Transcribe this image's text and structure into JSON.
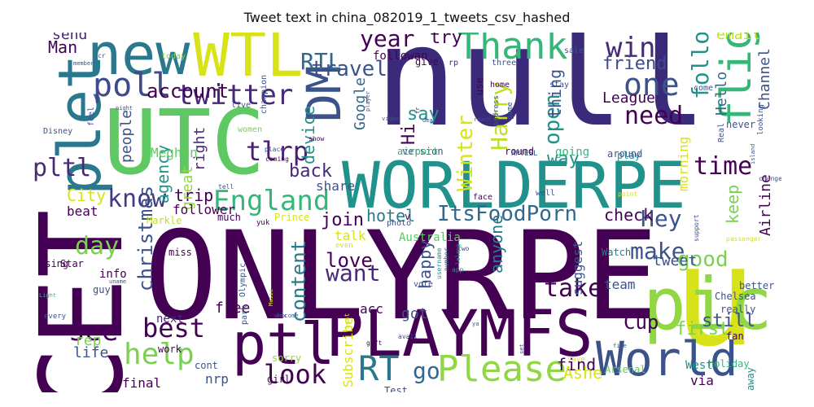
{
  "title": "Tweet text in china_082019_1_tweets_csv_hashed",
  "palette": {
    "dark_purple": "#440154",
    "indigo": "#3b2a7a",
    "blue": "#31688e",
    "teal": "#21918c",
    "green": "#35b779",
    "lime": "#90d743",
    "yellow": "#d8e219"
  },
  "words": [
    {
      "text": "null",
      "color": "#3b2a7a"
    },
    {
      "text": "ONLYRPE",
      "color": "#440154"
    },
    {
      "text": "UTC",
      "color": "#5ec962"
    },
    {
      "text": "CET",
      "color": "#440154"
    },
    {
      "text": "WORLDERPE",
      "color": "#21918c"
    },
    {
      "text": "PLAYMFS",
      "color": "#440154"
    },
    {
      "text": "u",
      "color": "#d8e219"
    },
    {
      "text": "pic",
      "color": "#90d743"
    },
    {
      "text": "new",
      "color": "#2a788e"
    },
    {
      "text": "WTL",
      "color": "#d8e219"
    },
    {
      "text": "plet",
      "color": "#2a788e"
    },
    {
      "text": "ptl",
      "color": "#440154"
    },
    {
      "text": "DM",
      "color": "#3b528b"
    },
    {
      "text": "World",
      "color": "#3b528b"
    },
    {
      "text": "Thank",
      "color": "#35b779"
    },
    {
      "text": "Please",
      "color": "#90d743"
    },
    {
      "text": "flight",
      "color": "#35b779"
    },
    {
      "text": "poll",
      "color": "#3e4a89"
    },
    {
      "text": "twitter",
      "color": "#482878"
    },
    {
      "text": "England",
      "color": "#35b779"
    },
    {
      "text": "RT",
      "color": "#2a788e"
    },
    {
      "text": "help",
      "color": "#7ad151"
    },
    {
      "text": "best",
      "color": "#440154"
    },
    {
      "text": "one",
      "color": "#3b528b"
    },
    {
      "text": "win",
      "color": "#482878"
    },
    {
      "text": "need",
      "color": "#440154"
    },
    {
      "text": "RTL",
      "color": "#31688e"
    },
    {
      "text": "year",
      "color": "#440154"
    },
    {
      "text": "tlrp",
      "color": "#481f70"
    },
    {
      "text": "know",
      "color": "#443983"
    },
    {
      "text": "look",
      "color": "#440154"
    },
    {
      "text": "time",
      "color": "#440154"
    },
    {
      "text": "want",
      "color": "#482878"
    },
    {
      "text": "Hey",
      "color": "#3b528b"
    },
    {
      "text": "take",
      "color": "#440154"
    },
    {
      "text": "see",
      "color": "#440154"
    },
    {
      "text": "pltl",
      "color": "#482878"
    },
    {
      "text": "make",
      "color": "#3b528b"
    },
    {
      "text": "day",
      "color": "#7ad151"
    },
    {
      "text": "follow",
      "color": "#21918c"
    },
    {
      "text": "Harry",
      "color": "#bddf26"
    },
    {
      "text": "go",
      "color": "#31688e"
    },
    {
      "text": "good",
      "color": "#7ad151"
    },
    {
      "text": "ItsFoodPorn",
      "color": "#31688e"
    },
    {
      "text": "open",
      "color": "#21918c"
    },
    {
      "text": "friend",
      "color": "#3e4a89"
    },
    {
      "text": "Winter",
      "color": "#d8e219"
    },
    {
      "text": "christmas",
      "color": "#3b528b"
    },
    {
      "text": "travel",
      "color": "#3b528b"
    },
    {
      "text": "account",
      "color": "#440154"
    },
    {
      "text": "love",
      "color": "#440154"
    },
    {
      "text": "content",
      "color": "#2a788e"
    },
    {
      "text": "City",
      "color": "#d8e219"
    },
    {
      "text": "say",
      "color": "#21918c"
    },
    {
      "text": "way",
      "color": "#21918c"
    },
    {
      "text": "Cup",
      "color": "#440154"
    },
    {
      "text": "first",
      "color": "#7ad151"
    },
    {
      "text": "still",
      "color": "#3b528b"
    },
    {
      "text": "back",
      "color": "#482878"
    },
    {
      "text": "join",
      "color": "#440154"
    },
    {
      "text": "hotel",
      "color": "#2a788e"
    },
    {
      "text": "check",
      "color": "#440154"
    },
    {
      "text": "Hi",
      "color": "#440154"
    },
    {
      "text": "Hello",
      "color": "#31688e"
    },
    {
      "text": "Man",
      "color": "#440154"
    },
    {
      "text": "try",
      "color": "#440154"
    },
    {
      "text": "send",
      "color": "#482878"
    },
    {
      "text": "email",
      "color": "#bddf26"
    },
    {
      "text": "Airline",
      "color": "#440154"
    },
    {
      "text": "Google",
      "color": "#31688e"
    },
    {
      "text": "agency",
      "color": "#21918c"
    },
    {
      "text": "device",
      "color": "#21918c"
    },
    {
      "text": "keep",
      "color": "#7ad151"
    },
    {
      "text": "Channel",
      "color": "#3b528b"
    },
    {
      "text": "trip",
      "color": "#440154"
    },
    {
      "text": "happy",
      "color": "#3b528b"
    },
    {
      "text": "anyone",
      "color": "#2a788e"
    },
    {
      "text": "thing",
      "color": "#3b528b"
    },
    {
      "text": "people",
      "color": "#3b528b"
    },
    {
      "text": "right",
      "color": "#482878"
    },
    {
      "text": "free",
      "color": "#440154"
    },
    {
      "text": "tweet",
      "color": "#3b528b"
    },
    {
      "text": "League",
      "color": "#440154"
    },
    {
      "text": "morning",
      "color": "#d8e219"
    },
    {
      "text": "team",
      "color": "#3b528b"
    },
    {
      "text": "suggest",
      "color": "#3b528b"
    },
    {
      "text": "find",
      "color": "#440154"
    },
    {
      "text": "Ashe",
      "color": "#d8e219"
    },
    {
      "text": "rep",
      "color": "#7ad151"
    },
    {
      "text": "life",
      "color": "#3b528b"
    },
    {
      "text": "got",
      "color": "#3b528b"
    },
    {
      "text": "acc",
      "color": "#440154"
    },
    {
      "text": "talk",
      "color": "#d8e219"
    },
    {
      "text": "great",
      "color": "#90d743"
    },
    {
      "text": "nrp",
      "color": "#3b528b"
    },
    {
      "text": "final",
      "color": "#440154"
    },
    {
      "text": "Subscribe",
      "color": "#d8e219"
    },
    {
      "text": "Meghan",
      "color": "#5ec962"
    },
    {
      "text": "follower",
      "color": "#440154"
    },
    {
      "text": "beat",
      "color": "#440154"
    },
    {
      "text": "share",
      "color": "#3b528b"
    },
    {
      "text": "via",
      "color": "#440154"
    },
    {
      "text": "followan",
      "color": "#440154"
    },
    {
      "text": "give",
      "color": "#440154"
    },
    {
      "text": "going",
      "color": "#35b779"
    },
    {
      "text": "Australia",
      "color": "#5ec962"
    },
    {
      "text": "v",
      "color": "#440154"
    },
    {
      "text": "much",
      "color": "#440154"
    },
    {
      "text": "Prince",
      "color": "#d8e219"
    },
    {
      "text": "Markle",
      "color": "#bddf26"
    },
    {
      "text": "Watch",
      "color": "#2a788e"
    },
    {
      "text": "info",
      "color": "#440154"
    },
    {
      "text": "guy",
      "color": "#3b528b"
    },
    {
      "text": "next",
      "color": "#482878"
    },
    {
      "text": "miss",
      "color": "#440154"
    },
    {
      "text": "using",
      "color": "#440154"
    },
    {
      "text": "Star",
      "color": "#440154"
    },
    {
      "text": "cont",
      "color": "#3b528b"
    },
    {
      "text": "sorry",
      "color": "#90d743"
    },
    {
      "text": "girl",
      "color": "#440154"
    },
    {
      "text": "work",
      "color": "#440154"
    },
    {
      "text": "Test",
      "color": "#3b528b"
    },
    {
      "text": "Arsenal",
      "color": "#5ec962"
    },
    {
      "text": "holiday",
      "color": "#35b779"
    },
    {
      "text": "West",
      "color": "#21918c"
    },
    {
      "text": "Chelsea",
      "color": "#3b528b"
    },
    {
      "text": "fan",
      "color": "#440154"
    },
    {
      "text": "really",
      "color": "#3b528b"
    },
    {
      "text": "better",
      "color": "#3b528b"
    },
    {
      "text": "away",
      "color": "#21918c"
    },
    {
      "text": "never",
      "color": "#3b528b"
    },
    {
      "text": "play",
      "color": "#21918c"
    },
    {
      "text": "around",
      "color": "#3b528b"
    },
    {
      "text": "round",
      "color": "#440154"
    },
    {
      "text": "version",
      "color": "#3b528b"
    },
    {
      "text": "airport",
      "color": "#35b779"
    },
    {
      "text": "use",
      "color": "#440154"
    },
    {
      "text": "rp",
      "color": "#482878"
    },
    {
      "text": "three",
      "color": "#3b528b"
    },
    {
      "text": "home",
      "color": "#440154"
    },
    {
      "text": "stay",
      "color": "#3b528b"
    },
    {
      "text": "come",
      "color": "#3b528b"
    },
    {
      "text": "sale",
      "color": "#3b528b"
    },
    {
      "text": "today",
      "color": "#7ad151"
    },
    {
      "text": "cr",
      "color": "#3b528b"
    },
    {
      "text": "champion",
      "color": "#3b528b"
    },
    {
      "text": "live",
      "color": "#3b528b"
    },
    {
      "text": "women",
      "color": "#7ad151"
    },
    {
      "text": "feel",
      "color": "#3b528b"
    },
    {
      "text": "Disney",
      "color": "#3b528b"
    },
    {
      "text": "place",
      "color": "#3b528b"
    },
    {
      "text": "coming",
      "color": "#440154"
    },
    {
      "text": "show",
      "color": "#440154"
    },
    {
      "text": "tell",
      "color": "#3b528b"
    },
    {
      "text": "well",
      "color": "#3b528b"
    },
    {
      "text": "face",
      "color": "#440154"
    },
    {
      "text": "point",
      "color": "#d8e219"
    },
    {
      "text": "change",
      "color": "#3b528b"
    },
    {
      "text": "Real",
      "color": "#3b528b"
    },
    {
      "text": "looking",
      "color": "#3b528b"
    },
    {
      "text": "photo",
      "color": "#3b528b"
    },
    {
      "text": "even",
      "color": "#d8e219"
    },
    {
      "text": "two",
      "color": "#3b528b"
    },
    {
      "text": "app",
      "color": "#21918c"
    },
    {
      "text": "vote",
      "color": "#3b528b"
    },
    {
      "text": "lelang",
      "color": "#21918c"
    },
    {
      "text": "username",
      "color": "#21918c"
    },
    {
      "text": "number",
      "color": "#3b528b"
    },
    {
      "text": "welcome",
      "color": "#3b528b"
    },
    {
      "text": "Music",
      "color": "#d8e219"
    },
    {
      "text": "Olympic",
      "color": "#3b528b"
    },
    {
      "text": "park",
      "color": "#3b528b"
    },
    {
      "text": "avail",
      "color": "#3b528b"
    },
    {
      "text": "gift",
      "color": "#440154"
    },
    {
      "text": "last",
      "color": "#440154"
    },
    {
      "text": "save",
      "color": "#d8e219"
    },
    {
      "text": "Light",
      "color": "#35b779"
    },
    {
      "text": "every",
      "color": "#3b528b"
    },
    {
      "text": "deal",
      "color": "#3b528b"
    },
    {
      "text": "fr",
      "color": "#440154"
    },
    {
      "text": "address",
      "color": "#3b528b"
    },
    {
      "text": "game",
      "color": "#3b528b"
    },
    {
      "text": "player",
      "color": "#3b528b"
    },
    {
      "text": "video",
      "color": "#3b528b"
    },
    {
      "text": "reach",
      "color": "#3b528b"
    },
    {
      "text": "yuk",
      "color": "#440154"
    },
    {
      "text": "RPTEEL",
      "color": "#3b528b"
    },
    {
      "text": "passenger",
      "color": "#d8e219"
    },
    {
      "text": "support",
      "color": "#3b528b"
    },
    {
      "text": "island",
      "color": "#3b528b"
    },
    {
      "text": "member",
      "color": "#3b528b"
    },
    {
      "text": "night",
      "color": "#3b528b"
    },
    {
      "text": "uname",
      "color": "#3b528b"
    },
    {
      "text": "fix",
      "color": "#3b528b"
    },
    {
      "text": "ya",
      "color": "#3b528b"
    },
    {
      "text": "set",
      "color": "#3b528b"
    },
    {
      "text": "five",
      "color": "#3b528b"
    },
    {
      "text": "best",
      "color": "#d8e219"
    },
    {
      "text": "may",
      "color": "#3b528b"
    }
  ]
}
